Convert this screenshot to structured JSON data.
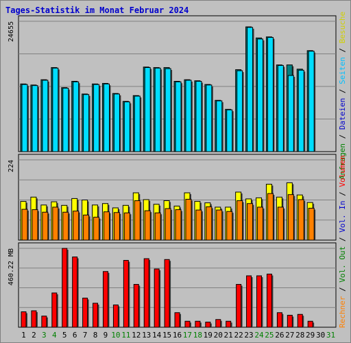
{
  "chart_data": {
    "type": "bar",
    "title": "Tages-Statistik im Monat Februar 2024",
    "categories": [
      "1",
      "2",
      "3",
      "4",
      "5",
      "6",
      "7",
      "8",
      "9",
      "10",
      "11",
      "12",
      "13",
      "14",
      "15",
      "16",
      "17",
      "18",
      "19",
      "20",
      "21",
      "22",
      "23",
      "24",
      "25",
      "26",
      "27",
      "28",
      "29",
      "30",
      "31"
    ],
    "weekend_days": [
      "3",
      "4",
      "10",
      "11",
      "17",
      "18",
      "24",
      "25",
      "31"
    ],
    "colors": {
      "title": "#0000cc",
      "label_dark": "#000000",
      "label_weekend": "#008000",
      "label_blue": "#0000cc",
      "hits": "#008080",
      "files": "#00ddff",
      "pages": "#00ddff",
      "visits": "#ffff00",
      "sites": "#ff8000",
      "volume": "#ff0000",
      "grid": "#808080",
      "plot_bg": "#c0c0c0"
    },
    "panels": [
      {
        "id": "top",
        "max_label": "24655",
        "ylim": [
          0,
          24655
        ],
        "series": [
          {
            "name": "Anfragen",
            "color": "#008080",
            "values": [
              12800,
              12600,
              13600,
              15900,
              12100,
              13300,
              10900,
              12800,
              12900,
              11000,
              9500,
              10600,
              16000,
              15900,
              15900,
              13300,
              13600,
              13400,
              12700,
              9700,
              8000,
              15500,
              23600,
              21500,
              21700,
              16400,
              16400,
              15600,
              19100,
              null,
              null
            ]
          },
          {
            "name": "Dateien",
            "color": "#00ddff",
            "values": [
              12700,
              12500,
              13500,
              15800,
              12000,
              13200,
              10800,
              12700,
              12800,
              10900,
              9400,
              10500,
              15900,
              15800,
              15700,
              13200,
              13500,
              13300,
              12600,
              9600,
              7900,
              15300,
              23500,
              21300,
              21600,
              16300,
              14400,
              15400,
              19000,
              null,
              null
            ]
          },
          {
            "name": "Seiten",
            "color": "#00ddff",
            "values": []
          }
        ]
      },
      {
        "id": "middle",
        "max_label": "224",
        "ylim": [
          0,
          224
        ],
        "series": [
          {
            "name": "Besuche",
            "color": "#ffff00",
            "values": [
              108,
              120,
              98,
              107,
              97,
              116,
              112,
              98,
              102,
              90,
              97,
              132,
              113,
              100,
              110,
              95,
              132,
              108,
              104,
              92,
              92,
              134,
              115,
              118,
              156,
              120,
              160,
              126,
              105,
              null,
              null
            ]
          },
          {
            "name": "Rechner",
            "color": "#ff8000",
            "values": [
              86,
              85,
              78,
              92,
              78,
              81,
              70,
              64,
              79,
              77,
              76,
              110,
              82,
              76,
              88,
              85,
              114,
              84,
              93,
              84,
              80,
              110,
              102,
              92,
              130,
              92,
              127,
              113,
              89,
              null,
              null
            ]
          }
        ]
      },
      {
        "id": "bottom",
        "max_label": "460.22 MB",
        "ylim": [
          0,
          460.22
        ],
        "series": [
          {
            "name": "Volumen",
            "color": "#ff0000",
            "values": [
              90,
              96,
              65,
              200,
              460,
              410,
              170,
              140,
              325,
              130,
              390,
              250,
              400,
              340,
              395,
              85,
              35,
              35,
              30,
              45,
              35,
              250,
              300,
              300,
              310,
              85,
              70,
              75,
              35,
              null,
              null
            ]
          }
        ]
      }
    ],
    "right_labels": {
      "top": [
        {
          "text": "Anfragen",
          "color": "#008000"
        },
        {
          "text": " / ",
          "color": "#000000"
        },
        {
          "text": "Dateien",
          "color": "#0000cc"
        },
        {
          "text": " / ",
          "color": "#000000"
        },
        {
          "text": "Seiten",
          "color": "#00c0ff"
        },
        {
          "text": " / ",
          "color": "#000000"
        },
        {
          "text": "Besuche",
          "color": "#d0d000"
        }
      ],
      "middle": [
        {
          "text": "Rechner",
          "color": "#ff8000"
        },
        {
          "text": " / ",
          "color": "#000000"
        },
        {
          "text": "Vol. Out",
          "color": "#008000"
        },
        {
          "text": " / ",
          "color": "#000000"
        },
        {
          "text": "Vol. In",
          "color": "#0000cc"
        },
        {
          "text": " / ",
          "color": "#000000"
        },
        {
          "text": "Volumen",
          "color": "#ff0000"
        }
      ]
    }
  }
}
